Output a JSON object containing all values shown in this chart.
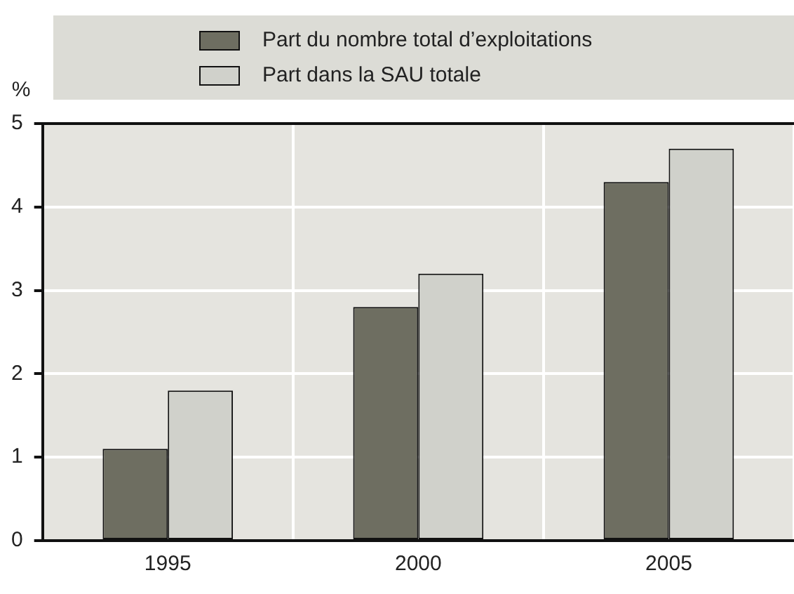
{
  "chart_data": {
    "type": "bar",
    "ylabel": "%",
    "categories": [
      "1995",
      "2000",
      "2005"
    ],
    "series": [
      {
        "name": "Part du nombre total d’exploitations",
        "color": "#6e6e61",
        "values": [
          1.1,
          2.8,
          4.3
        ]
      },
      {
        "name": "Part dans la SAU totale",
        "color": "#d0d1cb",
        "values": [
          1.8,
          3.2,
          4.7
        ]
      }
    ],
    "ylim": [
      0,
      5
    ],
    "yticks": [
      0,
      1,
      2,
      3,
      4,
      5
    ],
    "grid": true,
    "legend": "top"
  }
}
